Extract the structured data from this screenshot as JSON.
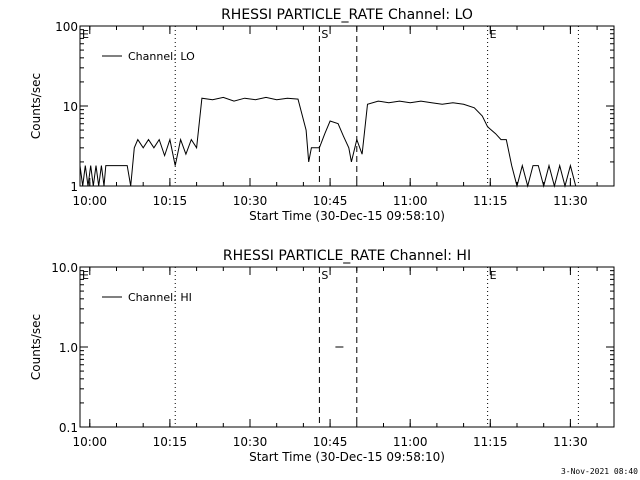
{
  "chart_data": [
    {
      "type": "line",
      "title": "RHESSI PARTICLE_RATE Channel: LO",
      "xlabel": "Start Time (30-Dec-15 09:58:10)",
      "ylabel": "Counts/sec",
      "y_scale": "log",
      "ylim": [
        1,
        100
      ],
      "y_ticks": [
        1,
        10,
        100
      ],
      "y_tick_labels": [
        "1",
        "10",
        "100"
      ],
      "xlim": [
        "09:58:10",
        "11:38:10"
      ],
      "x_ticks": [
        "10:00",
        "10:15",
        "10:30",
        "10:45",
        "11:00",
        "11:15",
        "11:30"
      ],
      "legend": {
        "label": "Channel: LO",
        "placement": "top-left"
      },
      "markers": [
        {
          "label": "E",
          "time": "09:58:10",
          "style": "dotted"
        },
        {
          "label": "",
          "time": "10:16:00",
          "style": "dotted"
        },
        {
          "label": "S",
          "time": "10:43:00",
          "style": "dashed"
        },
        {
          "label": "",
          "time": "10:50:00",
          "style": "dashed"
        },
        {
          "label": "E",
          "time": "11:14:30",
          "style": "dotted"
        },
        {
          "label": "",
          "time": "11:31:30",
          "style": "dotted"
        }
      ],
      "series": [
        {
          "name": "Channel: LO",
          "points": [
            [
              "09:58:10",
              1.8
            ],
            [
              "09:58:40",
              1
            ],
            [
              "09:59:10",
              1.8
            ],
            [
              "09:59:40",
              1
            ],
            [
              "10:00:10",
              1.8
            ],
            [
              "10:00:40",
              1
            ],
            [
              "10:01:10",
              1.8
            ],
            [
              "10:01:40",
              1
            ],
            [
              "10:02:10",
              1.8
            ],
            [
              "10:02:40",
              1
            ],
            [
              "10:03:00",
              1.8
            ],
            [
              "10:07:00",
              1.8
            ],
            [
              "10:07:40",
              1
            ],
            [
              "10:08:20",
              3
            ],
            [
              "10:09:00",
              3.8
            ],
            [
              "10:10:00",
              3
            ],
            [
              "10:11:00",
              3.8
            ],
            [
              "10:12:00",
              3
            ],
            [
              "10:13:00",
              3.8
            ],
            [
              "10:14:00",
              2.4
            ],
            [
              "10:15:00",
              3.8
            ],
            [
              "10:16:00",
              1.8
            ],
            [
              "10:17:00",
              3.8
            ],
            [
              "10:18:00",
              2.5
            ],
            [
              "10:19:00",
              3.8
            ],
            [
              "10:20:00",
              3
            ],
            [
              "10:21:00",
              12.5
            ],
            [
              "10:23:00",
              12
            ],
            [
              "10:25:00",
              12.8
            ],
            [
              "10:27:00",
              11.5
            ],
            [
              "10:29:00",
              12.5
            ],
            [
              "10:31:00",
              12
            ],
            [
              "10:33:00",
              12.8
            ],
            [
              "10:35:00",
              12
            ],
            [
              "10:37:00",
              12.5
            ],
            [
              "10:39:00",
              12.2
            ],
            [
              "10:40:30",
              5
            ],
            [
              "10:41:00",
              2
            ],
            [
              "10:41:30",
              3
            ],
            [
              "10:43:00",
              3
            ],
            [
              "10:44:00",
              4.5
            ],
            [
              "10:45:00",
              6.5
            ],
            [
              "10:46:30",
              6
            ],
            [
              "10:47:30",
              4.2
            ],
            [
              "10:48:30",
              3
            ],
            [
              "10:49:00",
              2
            ],
            [
              "10:50:00",
              3.8
            ],
            [
              "10:51:00",
              2.5
            ],
            [
              "10:52:00",
              10.5
            ],
            [
              "10:54:00",
              11.5
            ],
            [
              "10:56:00",
              11
            ],
            [
              "10:58:00",
              11.5
            ],
            [
              "11:00:00",
              11
            ],
            [
              "11:02:00",
              11.5
            ],
            [
              "11:04:00",
              11
            ],
            [
              "11:06:00",
              10.5
            ],
            [
              "11:08:00",
              11
            ],
            [
              "11:10:00",
              10.5
            ],
            [
              "11:12:00",
              9.5
            ],
            [
              "11:13:30",
              7.5
            ],
            [
              "11:14:30",
              5.5
            ],
            [
              "11:16:00",
              4.5
            ],
            [
              "11:17:00",
              3.8
            ],
            [
              "11:18:00",
              3.8
            ],
            [
              "11:19:00",
              1.8
            ],
            [
              "11:20:00",
              1
            ],
            [
              "11:21:00",
              1.8
            ],
            [
              "11:22:00",
              1
            ],
            [
              "11:23:00",
              1.8
            ],
            [
              "11:24:00",
              1.8
            ],
            [
              "11:25:00",
              1
            ],
            [
              "11:26:00",
              1.8
            ],
            [
              "11:27:00",
              1
            ],
            [
              "11:28:00",
              1.8
            ],
            [
              "11:29:00",
              1
            ],
            [
              "11:30:00",
              1.8
            ],
            [
              "11:31:00",
              1
            ]
          ]
        }
      ]
    },
    {
      "type": "line",
      "title": "RHESSI PARTICLE_RATE Channel: HI",
      "xlabel": "Start Time (30-Dec-15 09:58:10)",
      "ylabel": "Counts/sec",
      "y_scale": "log",
      "ylim": [
        0.1,
        10
      ],
      "y_ticks": [
        0.1,
        1,
        10
      ],
      "y_tick_labels": [
        "0.1",
        "1.0",
        "10.0"
      ],
      "xlim": [
        "09:58:10",
        "11:38:10"
      ],
      "x_ticks": [
        "10:00",
        "10:15",
        "10:30",
        "10:45",
        "11:00",
        "11:15",
        "11:30"
      ],
      "legend": {
        "label": "Channel: HI",
        "placement": "top-left"
      },
      "markers": [
        {
          "label": "E",
          "time": "09:58:10",
          "style": "dotted"
        },
        {
          "label": "",
          "time": "10:16:00",
          "style": "dotted"
        },
        {
          "label": "S",
          "time": "10:43:00",
          "style": "dashed"
        },
        {
          "label": "",
          "time": "10:50:00",
          "style": "dashed"
        },
        {
          "label": "E",
          "time": "11:14:30",
          "style": "dotted"
        },
        {
          "label": "",
          "time": "11:31:30",
          "style": "dotted"
        }
      ],
      "series": [
        {
          "name": "Channel: HI",
          "points": [
            [
              "10:46:00",
              1.0
            ],
            [
              "10:47:30",
              1.0
            ]
          ]
        }
      ]
    }
  ],
  "footer": {
    "timestamp": "3-Nov-2021 08:40"
  }
}
